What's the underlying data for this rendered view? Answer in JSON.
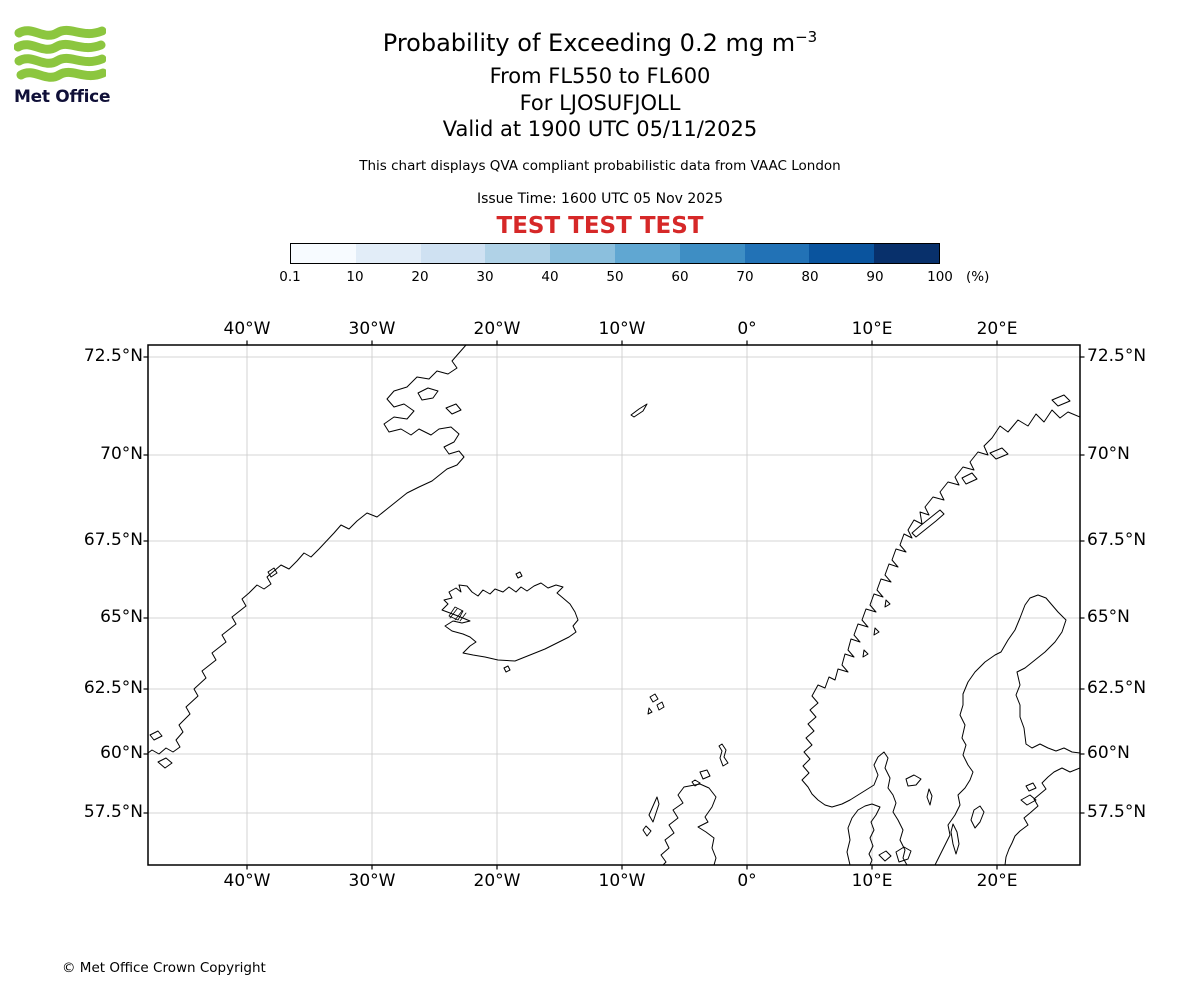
{
  "header": {
    "logo_text": "Met Office",
    "title_main": "Probability of Exceeding 0.2 mg m",
    "title_sup": "−3",
    "line_flight_levels": "From FL550 to FL600",
    "line_volcano": "For LJOSUFJOLL",
    "line_valid": "Valid at 1900 UTC 05/11/2025",
    "description": "This chart displays QVA compliant probabilistic data from VAAC London",
    "issue_time": "Issue Time: 1600 UTC 05 Nov 2025",
    "test_banner": "TEST TEST TEST"
  },
  "colors": {
    "brand_green": "#8CC63F",
    "test_red": "#d62828",
    "grid_gray": "#c8c8c8"
  },
  "colorbar": {
    "unit_label": "(%)",
    "tick_labels": [
      "0.1",
      "10",
      "20",
      "30",
      "40",
      "50",
      "60",
      "70",
      "80",
      "90",
      "100"
    ],
    "colors": [
      "#f7fbff",
      "#e2edf8",
      "#cfe1f2",
      "#b0d2e7",
      "#8bbfdd",
      "#60a7d2",
      "#3e8ec4",
      "#2272b6",
      "#0a549e",
      "#08306b"
    ]
  },
  "map": {
    "x_ticks": [
      "40°W",
      "30°W",
      "20°W",
      "10°W",
      "0°",
      "10°E",
      "20°E"
    ],
    "y_ticks": [
      "72.5°N",
      "70°N",
      "67.5°N",
      "65°N",
      "62.5°N",
      "60°N",
      "57.5°N"
    ]
  },
  "footer": {
    "copyright": "© Met Office Crown Copyright"
  }
}
